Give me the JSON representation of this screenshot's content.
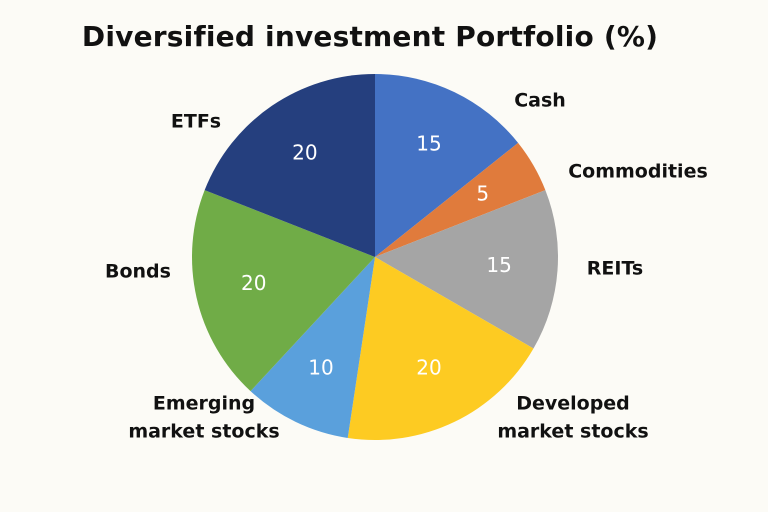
{
  "chart_data": {
    "type": "pie",
    "title": "Diversified investment Portfolio (%)",
    "categories": [
      "Cash",
      "Commodities",
      "REITs",
      "Developed market stocks",
      "Emerging market stocks",
      "Bonds",
      "ETFs"
    ],
    "label_lines": [
      [
        "Cash"
      ],
      [
        "Commodities"
      ],
      [
        "REITs"
      ],
      [
        "Developed",
        "market stocks"
      ],
      [
        "Emerging",
        "market stocks"
      ],
      [
        "Bonds"
      ],
      [
        "ETFs"
      ]
    ],
    "values": [
      15,
      5,
      15,
      20,
      10,
      20,
      20
    ],
    "colors": [
      "#4472c4",
      "#e07b3c",
      "#a5a5a5",
      "#fdcb22",
      "#5aa0dc",
      "#70ac47",
      "#253f7e"
    ],
    "start": "top",
    "direction": "clockwise",
    "legend": "labels outside slices"
  }
}
